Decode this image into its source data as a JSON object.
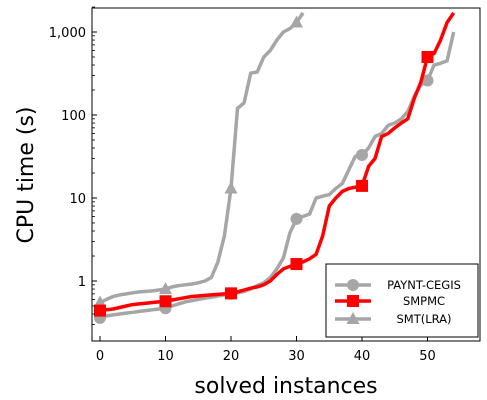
{
  "chart_data": {
    "type": "line",
    "title": "",
    "xlabel": "solved instances",
    "ylabel": "CPU time (s)",
    "xlim": [
      0,
      57
    ],
    "ylim": [
      0.3,
      2000
    ],
    "yscale": "log",
    "xticks": [
      0,
      10,
      20,
      30,
      40,
      50
    ],
    "xtick_labels": [
      "0",
      "10",
      "20",
      "30",
      "40",
      "50"
    ],
    "yticks": [
      1,
      10,
      100,
      1000
    ],
    "ytick_labels": [
      "1",
      "10",
      "100",
      "1,000"
    ],
    "grid": false,
    "legend_position": "bottom-right",
    "series": [
      {
        "name": "PAYNT-CEGIS",
        "color": "#a6a6a6",
        "marker": "circle",
        "x": [
          0,
          1,
          2,
          3,
          4,
          5,
          6,
          7,
          8,
          9,
          10,
          11,
          12,
          13,
          14,
          15,
          16,
          17,
          18,
          19,
          20,
          21,
          22,
          23,
          24,
          25,
          26,
          27,
          28,
          29,
          30,
          31,
          32,
          33,
          34,
          35,
          36,
          37,
          38,
          39,
          40,
          41,
          42,
          43,
          44,
          45,
          46,
          47,
          48,
          49,
          50,
          51,
          52,
          53,
          54
        ],
        "y": [
          0.36,
          0.38,
          0.39,
          0.4,
          0.41,
          0.42,
          0.43,
          0.44,
          0.45,
          0.46,
          0.47,
          0.5,
          0.53,
          0.56,
          0.58,
          0.6,
          0.62,
          0.64,
          0.66,
          0.68,
          0.7,
          0.72,
          0.75,
          0.8,
          0.88,
          0.95,
          1.1,
          1.4,
          1.9,
          3.8,
          5.6,
          6,
          6.4,
          10,
          10.5,
          11,
          13,
          15,
          22,
          32,
          33,
          40,
          55,
          60,
          75,
          80,
          90,
          110,
          170,
          230,
          260,
          400,
          420,
          450,
          1000
        ],
        "marker_x": [
          0,
          10,
          20,
          30,
          40,
          50
        ]
      },
      {
        "name": "SMPMC",
        "color": "#ff0000",
        "marker": "square",
        "x": [
          0,
          1,
          2,
          3,
          4,
          5,
          6,
          7,
          8,
          9,
          10,
          11,
          12,
          13,
          14,
          15,
          16,
          17,
          18,
          19,
          20,
          21,
          22,
          23,
          24,
          25,
          26,
          27,
          28,
          29,
          30,
          31,
          32,
          33,
          34,
          35,
          36,
          37,
          38,
          39,
          40,
          41,
          42,
          43,
          44,
          45,
          46,
          47,
          48,
          49,
          50,
          51,
          52,
          53,
          54
        ],
        "y": [
          0.44,
          0.45,
          0.46,
          0.48,
          0.5,
          0.52,
          0.53,
          0.54,
          0.55,
          0.56,
          0.57,
          0.59,
          0.61,
          0.63,
          0.65,
          0.66,
          0.67,
          0.68,
          0.69,
          0.7,
          0.71,
          0.74,
          0.78,
          0.82,
          0.85,
          0.9,
          1.0,
          1.2,
          1.4,
          1.5,
          1.6,
          1.7,
          1.85,
          2.1,
          3.5,
          8,
          10,
          12,
          13,
          13.5,
          14,
          24,
          30,
          55,
          60,
          70,
          80,
          90,
          160,
          250,
          500,
          550,
          800,
          1300,
          1700
        ],
        "marker_x": [
          0,
          10,
          20,
          30,
          40,
          50
        ]
      },
      {
        "name": "SMT(LRA)",
        "color": "#a6a6a6",
        "marker": "triangle",
        "x": [
          0,
          1,
          2,
          3,
          4,
          5,
          6,
          7,
          8,
          9,
          10,
          11,
          12,
          13,
          14,
          15,
          16,
          17,
          18,
          19,
          20,
          21,
          22,
          23,
          24,
          25,
          26,
          27,
          28,
          29,
          30,
          31
        ],
        "y": [
          0.55,
          0.6,
          0.65,
          0.68,
          0.7,
          0.72,
          0.74,
          0.75,
          0.76,
          0.78,
          0.8,
          0.85,
          0.88,
          0.9,
          0.92,
          0.95,
          1.0,
          1.1,
          1.7,
          3.5,
          13,
          120,
          140,
          320,
          330,
          500,
          600,
          800,
          1000,
          1100,
          1300,
          1700
        ],
        "marker_x": [
          0,
          10,
          20,
          30
        ]
      }
    ]
  }
}
